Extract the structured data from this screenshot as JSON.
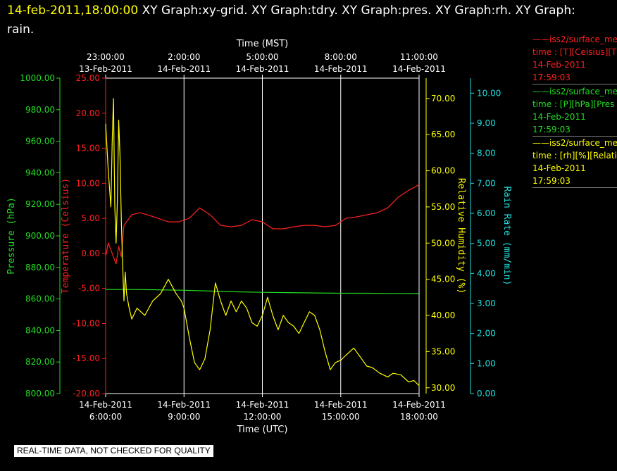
{
  "header": {
    "timestamp": "14-feb-2011,18:00:00",
    "graphs": "XY Graph:xy-grid.  XY Graph:tdry.  XY Graph:pres.  XY Graph:rh.  XY Graph: rain."
  },
  "banner": "REAL-TIME DATA, NOT CHECKED FOR QUALITY",
  "legend": [
    {
      "line1": "——iss2/surface_me",
      "line2": "time : [T][Celsius][T",
      "date": "14-Feb-2011",
      "time": "17:59:03",
      "color": "#ff2020"
    },
    {
      "line1": "——iss2/surface_me",
      "line2": "time : [P][hPa][Pres",
      "date": "14-Feb-2011",
      "time": "17:59:03",
      "color": "#22dd22"
    },
    {
      "line1": "——iss2/surface_me",
      "line2": "time : [rh][%][Relati",
      "date": "14-Feb-2011",
      "time": "17:59:03",
      "color": "#ffff00"
    }
  ],
  "chart_data": {
    "type": "line",
    "xlabel_top": "Time (MST)",
    "xlabel_bottom": "Time (UTC)",
    "x_ticks_top": [
      {
        "t": "23:00:00",
        "d": "13-Feb-2011"
      },
      {
        "t": "2:00:00",
        "d": "14-Feb-2011"
      },
      {
        "t": "5:00:00",
        "d": "14-Feb-2011"
      },
      {
        "t": "8:00:00",
        "d": "14-Feb-2011"
      },
      {
        "t": "11:00:00",
        "d": "14-Feb-2011"
      }
    ],
    "x_ticks_bottom": [
      {
        "d": "14-Feb-2011",
        "t": "6:00:00"
      },
      {
        "d": "14-Feb-2011",
        "t": "9:00:00"
      },
      {
        "d": "14-Feb-2011",
        "t": "12:00:00"
      },
      {
        "d": "14-Feb-2011",
        "t": "15:00:00"
      },
      {
        "d": "14-Feb-2011",
        "t": "18:00:00"
      }
    ],
    "xlim_utc_hours": [
      6,
      18
    ],
    "axes": {
      "pressure": {
        "label": "Pressure (hPa)",
        "range": [
          800,
          1000
        ],
        "ticks": [
          "1000.00",
          "980.00",
          "960.00",
          "940.00",
          "920.00",
          "900.00",
          "880.00",
          "860.00",
          "840.00",
          "820.00",
          "800.00"
        ],
        "color": "#22dd22"
      },
      "temperature": {
        "label": "Temperature (Celsius)",
        "range": [
          -20,
          25
        ],
        "ticks": [
          "25.00",
          "20.00",
          "15.00",
          "10.00",
          "5.00",
          "0.00",
          "-5.00",
          "-10.00",
          "-15.00",
          "-20.00"
        ],
        "color": "#ff2020"
      },
      "rh": {
        "label": "Relative Humidity (%)",
        "range": [
          29.2,
          72.8
        ],
        "ticks": [
          "70.00",
          "65.00",
          "60.00",
          "55.00",
          "50.00",
          "45.00",
          "40.00",
          "35.00",
          "30.00"
        ],
        "color": "#ffff00"
      },
      "rain": {
        "label": "Rain Rate (mm/min)",
        "range": [
          0,
          10.5
        ],
        "ticks": [
          "10.00",
          "9.00",
          "8.00",
          "7.00",
          "6.00",
          "5.00",
          "4.00",
          "3.00",
          "2.00",
          "1.00",
          "0.00"
        ],
        "color": "#22dddd"
      }
    },
    "grid": true,
    "series": [
      {
        "axis": "temperature",
        "color": "#ff2020",
        "x": [
          6.0,
          6.1,
          6.2,
          6.3,
          6.4,
          6.5,
          6.6,
          6.7,
          6.8,
          7.0,
          7.3,
          7.6,
          8.0,
          8.4,
          8.8,
          9.2,
          9.6,
          10.0,
          10.4,
          10.8,
          11.2,
          11.6,
          12.0,
          12.4,
          12.8,
          13.2,
          13.6,
          14.0,
          14.4,
          14.8,
          15.2,
          15.6,
          16.0,
          16.4,
          16.8,
          17.2,
          17.6,
          18.0
        ],
        "y": [
          -0.5,
          1.5,
          0.5,
          -0.5,
          -1.5,
          1.0,
          -0.5,
          4.0,
          4.5,
          5.5,
          5.8,
          5.5,
          5.0,
          4.5,
          4.5,
          5.0,
          6.5,
          5.5,
          4.0,
          3.8,
          4.0,
          4.8,
          4.5,
          3.5,
          3.5,
          3.8,
          4.0,
          4.0,
          3.8,
          4.0,
          5.0,
          5.2,
          5.5,
          5.8,
          6.5,
          8.0,
          9.0,
          9.8
        ]
      },
      {
        "axis": "pressure",
        "color": "#22dd22",
        "x": [
          6.0,
          7.0,
          8.0,
          9.0,
          10.0,
          11.0,
          12.0,
          13.0,
          14.0,
          15.0,
          16.0,
          17.0,
          18.0
        ],
        "y": [
          866.0,
          866.0,
          865.8,
          865.5,
          865.0,
          864.5,
          864.2,
          864.0,
          863.8,
          863.6,
          863.6,
          863.5,
          863.4
        ]
      },
      {
        "axis": "rh",
        "color": "#ffff00",
        "x": [
          6.0,
          6.1,
          6.2,
          6.25,
          6.3,
          6.35,
          6.4,
          6.45,
          6.5,
          6.55,
          6.6,
          6.65,
          6.7,
          6.75,
          6.8,
          6.9,
          7.0,
          7.2,
          7.5,
          7.8,
          8.1,
          8.4,
          8.7,
          8.9,
          9.0,
          9.2,
          9.4,
          9.6,
          9.8,
          10.0,
          10.2,
          10.4,
          10.6,
          10.8,
          11.0,
          11.2,
          11.4,
          11.6,
          11.8,
          12.0,
          12.2,
          12.4,
          12.6,
          12.8,
          13.0,
          13.2,
          13.4,
          13.6,
          13.8,
          14.0,
          14.2,
          14.4,
          14.6,
          14.8,
          15.0,
          15.2,
          15.5,
          15.8,
          16.0,
          16.2,
          16.5,
          16.8,
          17.0,
          17.3,
          17.6,
          17.8,
          18.0
        ],
        "y": [
          66.5,
          60.0,
          55.0,
          64.0,
          70.0,
          55.0,
          50.0,
          56.0,
          67.0,
          62.0,
          53.0,
          47.0,
          42.0,
          46.0,
          43.0,
          41.0,
          39.5,
          41.0,
          40.0,
          42.0,
          43.0,
          45.0,
          43.0,
          42.0,
          41.0,
          37.0,
          33.5,
          32.5,
          34.0,
          38.0,
          44.5,
          42.0,
          40.0,
          42.0,
          40.5,
          42.0,
          41.0,
          39.0,
          38.5,
          40.0,
          42.5,
          40.0,
          38.0,
          40.0,
          39.0,
          38.5,
          37.5,
          39.0,
          40.5,
          40.0,
          38.0,
          35.0,
          32.5,
          33.5,
          33.8,
          34.5,
          35.5,
          34.0,
          33.0,
          32.8,
          32.0,
          31.5,
          32.0,
          31.8,
          30.8,
          31.0,
          30.3
        ]
      }
    ]
  }
}
